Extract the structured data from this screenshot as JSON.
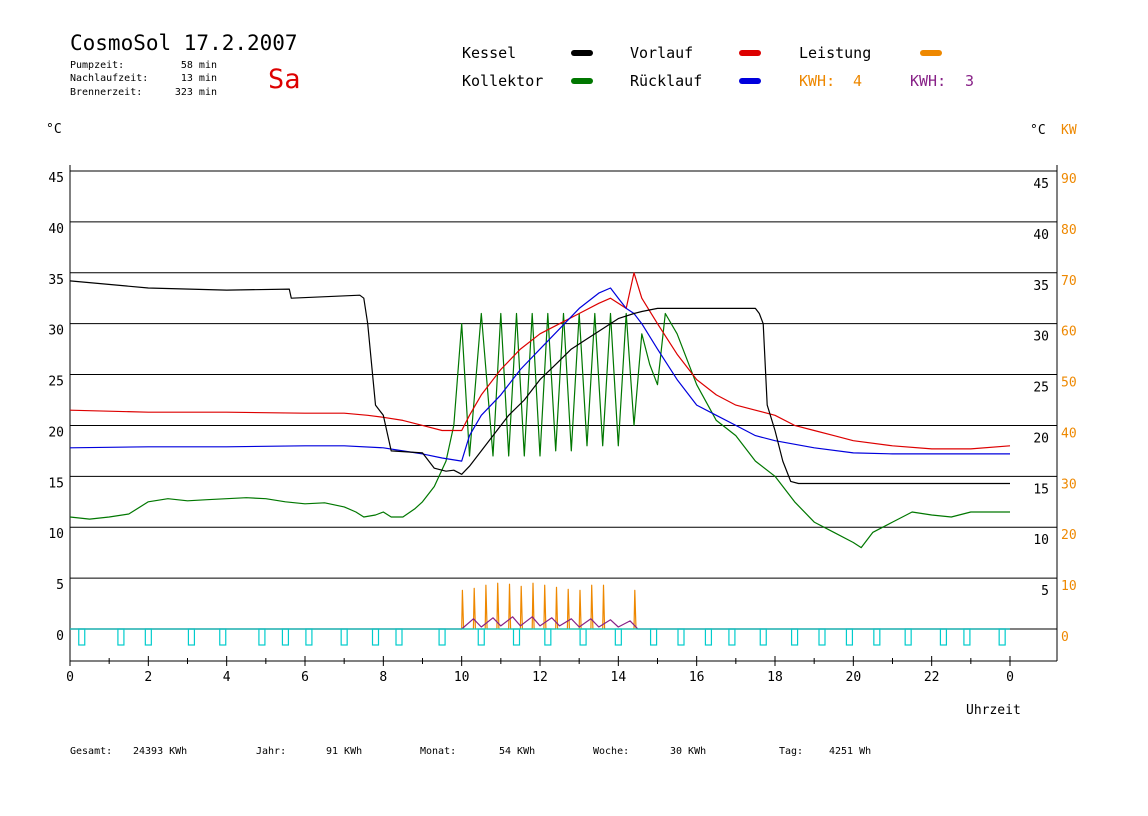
{
  "header": {
    "title": "CosmoSol 17.2.2007",
    "weekday": "Sa",
    "stats": [
      {
        "label": "Pumpzeit:",
        "value": "58 min"
      },
      {
        "label": "Nachlaufzeit:",
        "value": "13 min"
      },
      {
        "label": "Brennerzeit:",
        "value": "323 min"
      }
    ]
  },
  "legend": {
    "kessel": "Kessel",
    "kollektor": "Kollektor",
    "vorlauf": "Vorlauf",
    "ruecklauf": "Rücklauf",
    "leistung": "Leistung",
    "kwh1_label": "KWH:",
    "kwh1_value": "4",
    "kwh2_label": "KWH:",
    "kwh2_value": "3"
  },
  "footer": [
    {
      "label": "Gesamt:",
      "value": "24393 KWh"
    },
    {
      "label": "Jahr:",
      "value": "91 KWh"
    },
    {
      "label": "Monat:",
      "value": "54 KWh"
    },
    {
      "label": "Woche:",
      "value": "30 KWh"
    },
    {
      "label": "Tag:",
      "value": "4251 Wh"
    }
  ],
  "chart_data": {
    "type": "line",
    "xlabel": "Uhrzeit",
    "ylabel_left": "°C",
    "ylabel_right_temp": "°C",
    "ylabel_right_power": "KW",
    "xlim": [
      0,
      24
    ],
    "ylim": [
      0,
      45
    ],
    "x_ticks": [
      "0",
      "2",
      "4",
      "6",
      "8",
      "10",
      "12",
      "14",
      "16",
      "18",
      "20",
      "22",
      "0"
    ],
    "y_ticks_left": [
      "0",
      "5",
      "10",
      "15",
      "20",
      "25",
      "30",
      "35",
      "40",
      "45"
    ],
    "y_ticks_right_temp": [
      "5",
      "10",
      "15",
      "20",
      "25",
      "30",
      "35",
      "40",
      "45"
    ],
    "y_ticks_right_power": [
      "0",
      "10",
      "20",
      "30",
      "40",
      "50",
      "60",
      "70",
      "80",
      "90"
    ],
    "grid": true,
    "colors": {
      "kessel": "#000000",
      "kollektor": "#007700",
      "vorlauf": "#dd0000",
      "ruecklauf": "#0000dd",
      "leistung": "#ee8800",
      "kwh2": "#882288",
      "pump": "#00cccc"
    },
    "series": [
      {
        "name": "Kessel",
        "key": "kessel",
        "x": [
          0,
          2,
          4,
          5.6,
          5.65,
          7.4,
          7.5,
          7.6,
          7.8,
          8.0,
          8.2,
          8.6,
          9.0,
          9.3,
          9.6,
          9.8,
          10.0,
          10.2,
          10.5,
          10.8,
          11.2,
          11.6,
          12.0,
          12.4,
          12.8,
          13.2,
          13.6,
          14.0,
          14.4,
          14.6,
          15.0,
          16.0,
          17.0,
          17.5,
          17.6,
          17.7,
          17.8,
          18.0,
          18.2,
          18.4,
          18.6,
          19.0,
          22,
          24
        ],
        "y": [
          34.2,
          33.5,
          33.3,
          33.4,
          32.5,
          32.8,
          32.5,
          30.0,
          22.0,
          21.0,
          17.5,
          17.4,
          17.3,
          15.8,
          15.5,
          15.6,
          15.2,
          16.0,
          17.5,
          19.0,
          21.0,
          22.5,
          24.5,
          26.0,
          27.5,
          28.5,
          29.5,
          30.5,
          31.0,
          31.2,
          31.5,
          31.5,
          31.5,
          31.5,
          31.0,
          30.0,
          22.0,
          19.5,
          16.5,
          14.5,
          14.3,
          14.3,
          14.3,
          14.3
        ]
      },
      {
        "name": "Vorlauf",
        "key": "vorlauf",
        "x": [
          0,
          2,
          4,
          6,
          7,
          7.6,
          8,
          8.5,
          9,
          9.5,
          10,
          10.2,
          10.5,
          11,
          11.5,
          12,
          12.5,
          13,
          13.5,
          13.8,
          14.0,
          14.2,
          14.4,
          14.6,
          15.0,
          15.5,
          16.0,
          16.5,
          17.0,
          17.5,
          18.0,
          18.5,
          19.0,
          19.5,
          20.0,
          21.0,
          22.0,
          23.0,
          24.0
        ],
        "y": [
          21.5,
          21.3,
          21.3,
          21.2,
          21.2,
          21.0,
          20.8,
          20.5,
          20.0,
          19.5,
          19.5,
          21.0,
          23.0,
          25.5,
          27.5,
          29.0,
          30.0,
          31.0,
          32.0,
          32.5,
          32.0,
          31.5,
          35.0,
          32.5,
          30.0,
          27.0,
          24.5,
          23.0,
          22.0,
          21.5,
          21.0,
          20.0,
          19.5,
          19.0,
          18.5,
          18.0,
          17.7,
          17.7,
          18.0
        ]
      },
      {
        "name": "Rücklauf",
        "key": "ruecklauf",
        "x": [
          0,
          2,
          4,
          6,
          7,
          8,
          8.5,
          9,
          9.5,
          10,
          10.2,
          10.5,
          11,
          11.5,
          12,
          12.5,
          13,
          13.5,
          13.8,
          14.0,
          14.2,
          14.4,
          14.6,
          15.0,
          15.5,
          16.0,
          16.5,
          17.0,
          17.5,
          18.0,
          19.0,
          20.0,
          21.0,
          22.0,
          23.0,
          24.0
        ],
        "y": [
          17.8,
          17.9,
          17.9,
          18.0,
          18.0,
          17.8,
          17.5,
          17.2,
          16.8,
          16.5,
          19.0,
          21.0,
          23.0,
          25.5,
          27.5,
          29.5,
          31.5,
          33.0,
          33.5,
          32.5,
          31.5,
          31.0,
          30.0,
          27.5,
          24.5,
          22.0,
          21.0,
          20.0,
          19.0,
          18.5,
          17.8,
          17.3,
          17.2,
          17.2,
          17.2,
          17.2
        ]
      },
      {
        "name": "Kollektor",
        "key": "kollektor",
        "x": [
          0,
          0.5,
          1.0,
          1.5,
          2.0,
          2.5,
          3.0,
          3.5,
          4.0,
          4.5,
          5.0,
          5.5,
          6.0,
          6.5,
          7.0,
          7.3,
          7.5,
          7.8,
          8.0,
          8.2,
          8.5,
          8.8,
          9.0,
          9.3,
          9.6,
          9.8,
          10.0,
          10.2,
          10.5,
          10.8,
          11.0,
          11.2,
          11.4,
          11.6,
          11.8,
          12.0,
          12.2,
          12.4,
          12.6,
          12.8,
          13.0,
          13.2,
          13.4,
          13.6,
          13.8,
          14.0,
          14.2,
          14.4,
          14.6,
          14.8,
          15.0,
          15.2,
          15.5,
          16.0,
          16.5,
          17.0,
          17.5,
          18.0,
          18.5,
          19.0,
          19.5,
          20.0,
          20.2,
          20.5,
          21.0,
          21.5,
          22.0,
          22.5,
          23.0,
          23.5,
          24.0
        ],
        "y": [
          11.0,
          10.8,
          11.0,
          11.3,
          12.5,
          12.8,
          12.6,
          12.7,
          12.8,
          12.9,
          12.8,
          12.5,
          12.3,
          12.4,
          12.0,
          11.5,
          11.0,
          11.2,
          11.5,
          11.0,
          11.0,
          11.8,
          12.5,
          14.0,
          16.5,
          20.0,
          30.0,
          17.0,
          31.0,
          17.0,
          31.0,
          17.0,
          31.0,
          17.0,
          31.0,
          17.0,
          31.0,
          17.5,
          31.0,
          17.5,
          31.0,
          18.0,
          31.0,
          18.0,
          31.0,
          18.0,
          31.0,
          20.0,
          29.0,
          26.0,
          24.0,
          31.0,
          29.0,
          24.0,
          20.5,
          19.0,
          16.5,
          15.0,
          12.5,
          10.5,
          9.5,
          8.5,
          8.0,
          9.5,
          10.5,
          11.5,
          11.2,
          11.0,
          11.5,
          11.5,
          11.5
        ]
      },
      {
        "name": "Leistung",
        "key": "leistung",
        "x": [
          0,
          10.0,
          10.02,
          10.05,
          10.3,
          10.32,
          10.35,
          10.6,
          10.62,
          10.65,
          10.9,
          10.92,
          10.95,
          11.2,
          11.22,
          11.25,
          11.5,
          11.52,
          11.55,
          11.8,
          11.82,
          11.85,
          12.1,
          12.12,
          12.15,
          12.4,
          12.42,
          12.45,
          12.7,
          12.72,
          12.75,
          13.0,
          13.02,
          13.05,
          13.3,
          13.32,
          13.35,
          13.6,
          13.62,
          13.65,
          13.9,
          14.4,
          14.42,
          14.45,
          24
        ],
        "y": [
          0,
          0,
          3.8,
          0,
          0,
          4.0,
          0,
          0,
          4.3,
          0,
          0,
          4.5,
          0,
          0,
          4.4,
          0,
          0,
          4.2,
          0,
          0,
          4.5,
          0,
          0,
          4.3,
          0,
          0,
          4.1,
          0,
          0,
          3.9,
          0,
          0,
          3.8,
          0,
          0,
          4.3,
          0,
          0,
          4.3,
          0,
          0,
          0,
          3.8,
          0,
          0
        ]
      },
      {
        "name": "KWH: 3",
        "key": "kwh2",
        "x": [
          0,
          10.0,
          10.3,
          10.5,
          10.8,
          11.0,
          11.3,
          11.5,
          11.8,
          12.0,
          12.3,
          12.5,
          12.8,
          13.0,
          13.3,
          13.5,
          13.8,
          14.0,
          14.3,
          14.5,
          24
        ],
        "y": [
          0,
          0,
          1.0,
          0.2,
          1.1,
          0.3,
          1.2,
          0.3,
          1.2,
          0.3,
          1.1,
          0.3,
          1.0,
          0.2,
          1.0,
          0.2,
          0.9,
          0.2,
          0.8,
          0,
          0
        ]
      }
    ],
    "pump_pulses": [
      0.3,
      1.3,
      2.0,
      3.1,
      3.9,
      4.9,
      5.5,
      6.1,
      7.0,
      7.8,
      8.4,
      9.5,
      10.5,
      11.4,
      12.2,
      13.1,
      14.0,
      14.9,
      15.6,
      16.3,
      16.9,
      17.7,
      18.5,
      19.2,
      19.9,
      20.6,
      21.4,
      22.3,
      22.9,
      23.8
    ]
  }
}
